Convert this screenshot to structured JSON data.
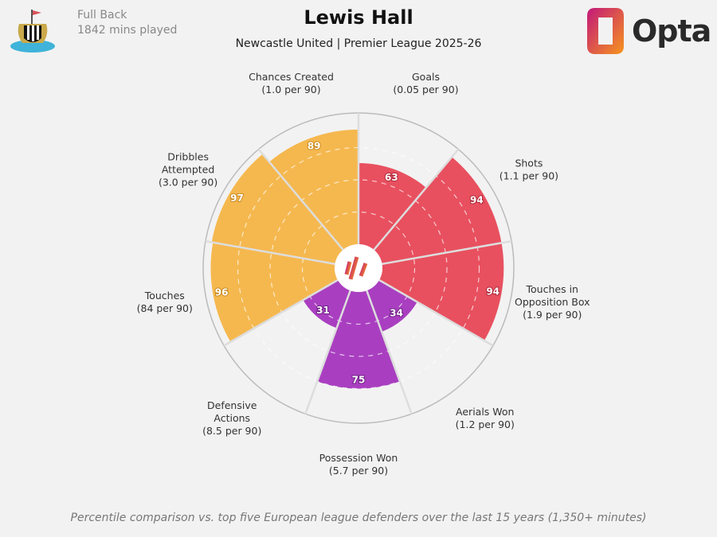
{
  "header": {
    "position": "Full Back",
    "minutes": "1842 mins played",
    "title": "Lewis Hall",
    "subtitle": "Newcastle United | Premier League 2025-26",
    "brand": "Opta"
  },
  "footer": "Percentile comparison vs. top five European league defenders over the last 15 years (1,350+ minutes)",
  "colors": {
    "background": "#f2f2f2",
    "attacking": "#e8505f",
    "defending": "#a93fc0",
    "possession": "#f5b84f"
  },
  "chart_data": {
    "type": "pie",
    "subtype": "polar-bar",
    "rlim": [
      0,
      100
    ],
    "grid_rings": [
      25,
      50,
      75
    ],
    "categories": [
      {
        "label": [
          "Goals",
          "(0.05 per 90)"
        ],
        "value": 63,
        "group": "attacking"
      },
      {
        "label": [
          "Shots",
          "(1.1 per 90)"
        ],
        "value": 94,
        "group": "attacking"
      },
      {
        "label": [
          "Touches in",
          "Opposition Box",
          "(1.9 per 90)"
        ],
        "value": 94,
        "group": "attacking"
      },
      {
        "label": [
          "Aerials Won",
          "(1.2 per 90)"
        ],
        "value": 34,
        "group": "defending"
      },
      {
        "label": [
          "Possession Won",
          "(5.7 per 90)"
        ],
        "value": 75,
        "group": "defending"
      },
      {
        "label": [
          "Defensive",
          "Actions",
          "(8.5 per 90)"
        ],
        "value": 31,
        "group": "defending"
      },
      {
        "label": [
          "Touches",
          "(84 per 90)"
        ],
        "value": 96,
        "group": "possession"
      },
      {
        "label": [
          "Dribbles",
          "Attempted",
          "(3.0 per 90)"
        ],
        "value": 97,
        "group": "possession"
      },
      {
        "label": [
          "Chances Created",
          "(1.0 per 90)"
        ],
        "value": 89,
        "group": "possession"
      }
    ]
  }
}
